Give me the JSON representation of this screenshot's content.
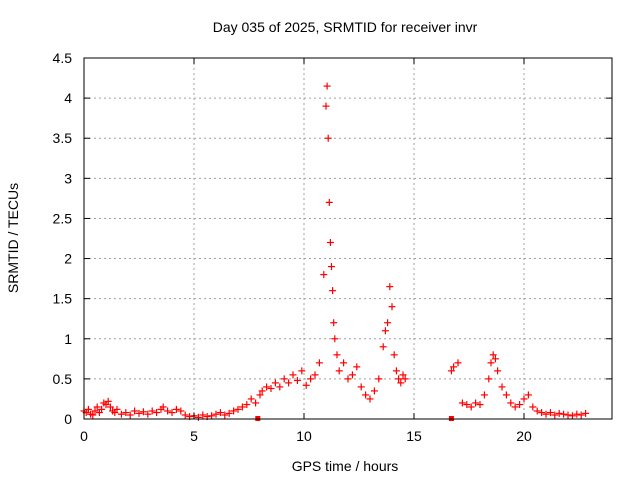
{
  "chart_data": {
    "type": "scatter",
    "title": "Day 035 of 2025, SRMTID for receiver invr",
    "xlabel": "GPS time / hours",
    "ylabel": "SRMTID / TECUs",
    "xlim": [
      0,
      24
    ],
    "ylim": [
      0,
      4.5
    ],
    "xticks": [
      0,
      5,
      10,
      15,
      20
    ],
    "xtick_labels": [
      "0",
      "5",
      "10",
      "15",
      "20"
    ],
    "yticks": [
      0,
      0.5,
      1,
      1.5,
      2,
      2.5,
      3,
      3.5,
      4,
      4.5
    ],
    "ytick_labels": [
      "0",
      "0.5",
      "1",
      "1.5",
      "2",
      "2.5",
      "3",
      "3.5",
      "4",
      "4.5"
    ],
    "grid": true,
    "marker": "+",
    "color": "#ff0000",
    "series": [
      {
        "name": "SRMTID",
        "x": [
          0.0,
          0.1,
          0.2,
          0.3,
          0.4,
          0.5,
          0.6,
          0.7,
          0.8,
          0.9,
          1.0,
          1.1,
          1.2,
          1.3,
          1.4,
          1.5,
          1.7,
          1.9,
          2.1,
          2.3,
          2.5,
          2.7,
          2.9,
          3.1,
          3.3,
          3.5,
          3.6,
          3.8,
          4.0,
          4.2,
          4.4,
          4.6,
          4.8,
          5.0,
          5.2,
          5.4,
          5.6,
          5.8,
          6.0,
          6.2,
          6.4,
          6.6,
          6.8,
          7.0,
          7.2,
          7.4,
          7.6,
          7.8,
          8.0,
          8.1,
          8.3,
          8.5,
          8.7,
          8.9,
          9.1,
          9.3,
          9.5,
          9.7,
          9.9,
          10.1,
          10.3,
          10.5,
          10.7,
          10.9,
          11.0,
          11.05,
          11.1,
          11.15,
          11.2,
          11.25,
          11.3,
          11.35,
          11.4,
          11.5,
          11.6,
          11.8,
          12.0,
          12.2,
          12.4,
          12.6,
          12.8,
          13.0,
          13.2,
          13.4,
          13.6,
          13.7,
          13.8,
          13.9,
          14.0,
          14.1,
          14.2,
          14.3,
          14.4,
          14.5,
          14.6,
          16.7,
          16.8,
          17.0,
          17.2,
          17.4,
          17.6,
          17.8,
          18.0,
          18.2,
          18.4,
          18.5,
          18.6,
          18.7,
          18.8,
          19.0,
          19.2,
          19.4,
          19.6,
          19.8,
          20.0,
          20.2,
          20.4,
          20.6,
          20.8,
          21.0,
          21.2,
          21.4,
          21.6,
          21.8,
          22.0,
          22.2,
          22.4,
          22.6,
          22.8
        ],
        "y": [
          0.1,
          0.08,
          0.12,
          0.06,
          0.05,
          0.1,
          0.15,
          0.08,
          0.12,
          0.2,
          0.18,
          0.22,
          0.15,
          0.1,
          0.08,
          0.12,
          0.06,
          0.08,
          0.05,
          0.1,
          0.07,
          0.09,
          0.06,
          0.1,
          0.08,
          0.12,
          0.15,
          0.1,
          0.08,
          0.12,
          0.1,
          0.05,
          0.03,
          0.04,
          0.02,
          0.05,
          0.03,
          0.04,
          0.06,
          0.08,
          0.05,
          0.07,
          0.1,
          0.12,
          0.15,
          0.18,
          0.25,
          0.2,
          0.3,
          0.35,
          0.4,
          0.38,
          0.45,
          0.4,
          0.5,
          0.45,
          0.55,
          0.48,
          0.6,
          0.42,
          0.5,
          0.55,
          0.7,
          1.8,
          3.9,
          4.15,
          3.5,
          2.7,
          2.2,
          1.9,
          1.6,
          1.2,
          1.0,
          0.8,
          0.6,
          0.7,
          0.5,
          0.55,
          0.65,
          0.4,
          0.3,
          0.25,
          0.35,
          0.5,
          0.9,
          1.1,
          1.2,
          1.65,
          1.4,
          0.8,
          0.6,
          0.5,
          0.45,
          0.55,
          0.5,
          0.6,
          0.65,
          0.7,
          0.2,
          0.18,
          0.15,
          0.2,
          0.18,
          0.3,
          0.5,
          0.7,
          0.8,
          0.75,
          0.6,
          0.4,
          0.3,
          0.2,
          0.15,
          0.18,
          0.25,
          0.3,
          0.15,
          0.1,
          0.08,
          0.06,
          0.08,
          0.05,
          0.07,
          0.06,
          0.05,
          0.04,
          0.06,
          0.05,
          0.07
        ]
      }
    ],
    "outliers_at_zero": {
      "x": [
        7.9,
        16.7
      ],
      "y": [
        0,
        0
      ]
    }
  }
}
